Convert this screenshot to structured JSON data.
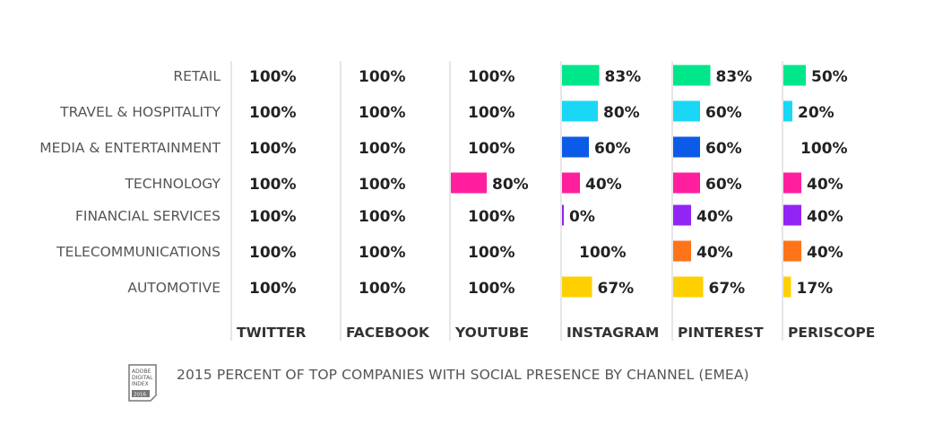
{
  "chart_data": {
    "type": "bar",
    "title": "2015 PERCENT OF TOP COMPANIES WITH SOCIAL PRESENCE BY CHANNEL (EMEA)",
    "categories": [
      "RETAIL",
      "TRAVEL & HOSPITALITY",
      "MEDIA & ENTERTAINMENT",
      "TECHNOLOGY",
      "FINANCIAL SERVICES",
      "TELECOMMUNICATIONS",
      "AUTOMOTIVE"
    ],
    "channels": [
      "TWITTER",
      "FACEBOOK",
      "YOUTUBE",
      "INSTAGRAM",
      "PINTEREST",
      "PERISCOPE"
    ],
    "values": [
      [
        100,
        100,
        100,
        83,
        83,
        50
      ],
      [
        100,
        100,
        100,
        80,
        60,
        20
      ],
      [
        100,
        100,
        100,
        60,
        60,
        100
      ],
      [
        100,
        100,
        80,
        40,
        60,
        40
      ],
      [
        100,
        100,
        100,
        0,
        40,
        40
      ],
      [
        100,
        100,
        100,
        100,
        40,
        40
      ],
      [
        100,
        100,
        100,
        67,
        67,
        17
      ]
    ],
    "value_suffix": "%",
    "row_colors": [
      "#00e68a",
      "#1ad7f5",
      "#0b5be8",
      "#ff1f9e",
      "#9125f5",
      "#ff7418",
      "#ffd000"
    ]
  },
  "badge": {
    "line1": "ADOBE",
    "line2": "DIGITAL",
    "line3": "INDEX",
    "year": "2016"
  }
}
